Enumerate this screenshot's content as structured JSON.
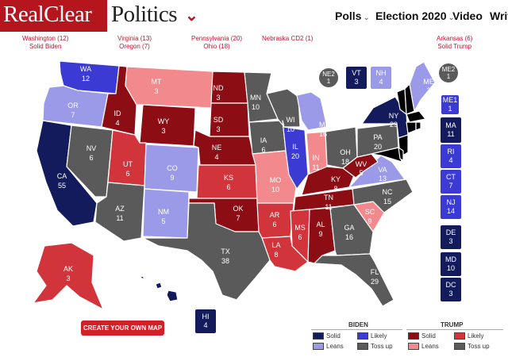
{
  "header": {
    "logo_part1": "RealClear",
    "logo_part2": "Politics",
    "nav": [
      "Polls",
      "Election 2020",
      "Video",
      "Writ"
    ]
  },
  "top_notes": [
    {
      "line1": "Washington (12)",
      "line2": "Solid Biden"
    },
    {
      "line1": "Virginia (13)",
      "line2": "Oregon (7)"
    },
    {
      "line1": "Pennsylvania (20)",
      "line2": "Ohio (18)"
    },
    {
      "line1": "Nebraska CD2 (1)",
      "line2": ""
    },
    {
      "line1": "Arkansas (6)",
      "line2": "Solid Trump"
    }
  ],
  "colors": {
    "solid_biden": "#131b5d",
    "likely_biden": "#3b3bd4",
    "leans_biden": "#9a9ae8",
    "tossup": "#5a5a5a",
    "solid_trump": "#8c0e14",
    "likely_trump": "#d2343b",
    "leans_trump": "#f2898d"
  },
  "states": {
    "WA": {
      "abbr": "WA",
      "ev": "12",
      "rating": "likely_biden"
    },
    "OR": {
      "abbr": "OR",
      "ev": "7",
      "rating": "leans_biden"
    },
    "CA": {
      "abbr": "CA",
      "ev": "55",
      "rating": "solid_biden"
    },
    "NV": {
      "abbr": "NV",
      "ev": "6",
      "rating": "tossup"
    },
    "ID": {
      "abbr": "ID",
      "ev": "4",
      "rating": "solid_trump"
    },
    "MT": {
      "abbr": "MT",
      "ev": "3",
      "rating": "leans_trump"
    },
    "WY": {
      "abbr": "WY",
      "ev": "3",
      "rating": "solid_trump"
    },
    "UT": {
      "abbr": "UT",
      "ev": "6",
      "rating": "likely_trump"
    },
    "AZ": {
      "abbr": "AZ",
      "ev": "11",
      "rating": "tossup"
    },
    "CO": {
      "abbr": "CO",
      "ev": "9",
      "rating": "leans_biden"
    },
    "NM": {
      "abbr": "NM",
      "ev": "5",
      "rating": "leans_biden"
    },
    "ND": {
      "abbr": "ND",
      "ev": "3",
      "rating": "solid_trump"
    },
    "SD": {
      "abbr": "SD",
      "ev": "3",
      "rating": "solid_trump"
    },
    "NE": {
      "abbr": "NE",
      "ev": "4",
      "rating": "solid_trump"
    },
    "KS": {
      "abbr": "KS",
      "ev": "6",
      "rating": "likely_trump"
    },
    "OK": {
      "abbr": "OK",
      "ev": "7",
      "rating": "solid_trump"
    },
    "TX": {
      "abbr": "TX",
      "ev": "38",
      "rating": "tossup"
    },
    "MN": {
      "abbr": "MN",
      "ev": "10",
      "rating": "tossup"
    },
    "IA": {
      "abbr": "IA",
      "ev": "6",
      "rating": "tossup"
    },
    "MO": {
      "abbr": "MO",
      "ev": "10",
      "rating": "leans_trump"
    },
    "AR": {
      "abbr": "AR",
      "ev": "6",
      "rating": "likely_trump"
    },
    "LA": {
      "abbr": "LA",
      "ev": "8",
      "rating": "likely_trump"
    },
    "WI": {
      "abbr": "WI",
      "ev": "10",
      "rating": "tossup"
    },
    "IL": {
      "abbr": "IL",
      "ev": "20",
      "rating": "likely_biden"
    },
    "MI": {
      "abbr": "MI",
      "ev": "16",
      "rating": "leans_biden"
    },
    "IN": {
      "abbr": "IN",
      "ev": "11",
      "rating": "leans_trump"
    },
    "OH": {
      "abbr": "OH",
      "ev": "18",
      "rating": "tossup"
    },
    "KY": {
      "abbr": "KY",
      "ev": "8",
      "rating": "solid_trump"
    },
    "TN": {
      "abbr": "TN",
      "ev": "11",
      "rating": "solid_trump"
    },
    "MS": {
      "abbr": "MS",
      "ev": "6",
      "rating": "likely_trump"
    },
    "AL": {
      "abbr": "AL",
      "ev": "9",
      "rating": "solid_trump"
    },
    "GA": {
      "abbr": "GA",
      "ev": "16",
      "rating": "tossup"
    },
    "FL": {
      "abbr": "FL",
      "ev": "29",
      "rating": "tossup"
    },
    "SC": {
      "abbr": "SC",
      "ev": "9",
      "rating": "leans_trump"
    },
    "NC": {
      "abbr": "NC",
      "ev": "15",
      "rating": "tossup"
    },
    "VA": {
      "abbr": "VA",
      "ev": "13",
      "rating": "leans_biden"
    },
    "WV": {
      "abbr": "WV",
      "ev": "5",
      "rating": "solid_trump"
    },
    "PA": {
      "abbr": "PA",
      "ev": "20",
      "rating": "tossup"
    },
    "NY": {
      "abbr": "NY",
      "ev": "29",
      "rating": "solid_biden"
    },
    "AK": {
      "abbr": "AK",
      "ev": "3",
      "rating": "likely_trump"
    },
    "HI": {
      "abbr": "HI",
      "ev": "4",
      "rating": "solid_biden"
    },
    "ME": {
      "abbr": "ME",
      "ev": "2",
      "rating": "leans_biden"
    }
  },
  "boxes": {
    "VT": {
      "abbr": "VT",
      "ev": "3",
      "rating": "solid_biden"
    },
    "NH": {
      "abbr": "NH",
      "ev": "4",
      "rating": "leans_biden"
    },
    "MA": {
      "abbr": "MA",
      "ev": "11",
      "rating": "solid_biden"
    },
    "RI": {
      "abbr": "RI",
      "ev": "4",
      "rating": "likely_biden"
    },
    "CT": {
      "abbr": "CT",
      "ev": "7",
      "rating": "likely_biden"
    },
    "NJ": {
      "abbr": "NJ",
      "ev": "14",
      "rating": "likely_biden"
    },
    "DE": {
      "abbr": "DE",
      "ev": "3",
      "rating": "solid_biden"
    },
    "MD": {
      "abbr": "MD",
      "ev": "10",
      "rating": "solid_biden"
    },
    "DC": {
      "abbr": "DC",
      "ev": "3",
      "rating": "solid_biden"
    },
    "ME1": {
      "abbr": "ME1",
      "ev": "1",
      "rating": "likely_biden"
    },
    "HI": {
      "abbr": "HI",
      "ev": "4",
      "rating": "solid_biden"
    }
  },
  "districts": {
    "NE2": {
      "abbr": "NE2",
      "ev": "1"
    },
    "ME2": {
      "abbr": "ME2",
      "ev": "1"
    }
  },
  "create_button": "CREATE YOUR OWN MAP",
  "legend": {
    "biden_title": "BIDEN",
    "trump_title": "TRUMP",
    "solid": "Solid",
    "likely": "Likely",
    "leans": "Leans",
    "tossup": "Toss up"
  }
}
